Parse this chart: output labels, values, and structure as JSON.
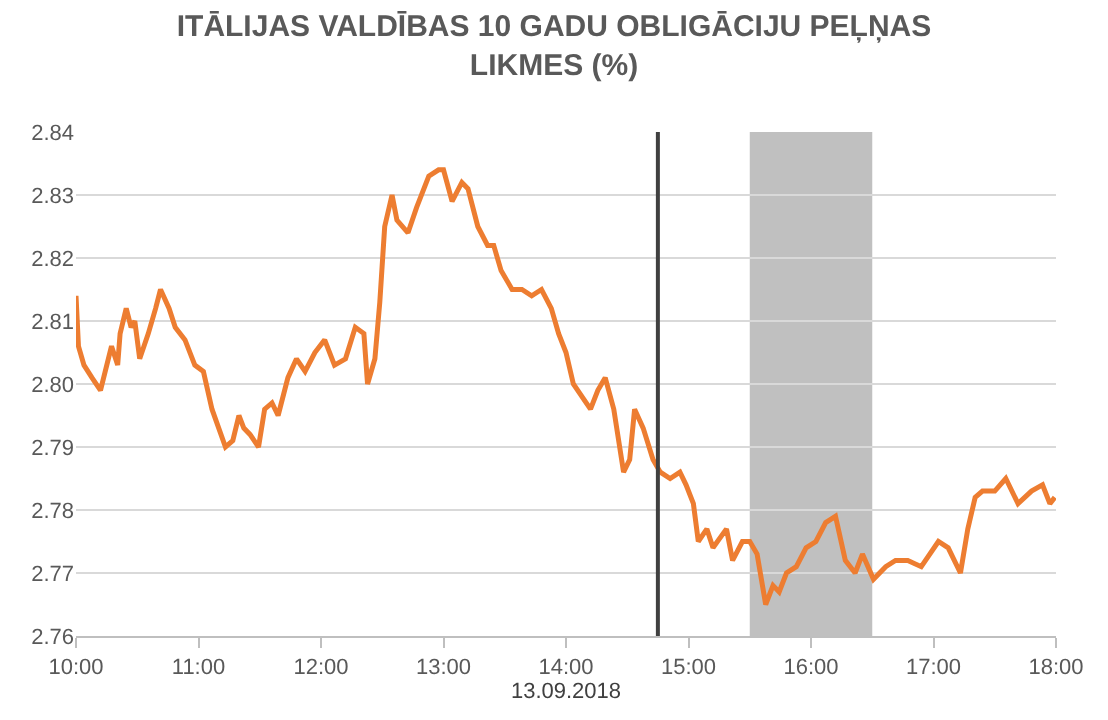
{
  "chart_data": {
    "type": "line",
    "title": "ITĀLIJAS VALDĪBAS 10 GADU OBLIGĀCIJU PEĻŅAS\nLIKMES (%)",
    "xlabel": "13.09.2018",
    "x": [
      10.0,
      10.02,
      10.065,
      10.13,
      10.2,
      10.29,
      10.34,
      10.36,
      10.41,
      10.45,
      10.48,
      10.52,
      10.59,
      10.65,
      10.69,
      10.76,
      10.81,
      10.89,
      10.97,
      11.04,
      11.11,
      11.22,
      11.28,
      11.33,
      11.37,
      11.42,
      11.49,
      11.54,
      11.6,
      11.65,
      11.73,
      11.8,
      11.87,
      11.95,
      12.03,
      12.11,
      12.2,
      12.28,
      12.35,
      12.38,
      12.44,
      12.48,
      12.52,
      12.58,
      12.62,
      12.71,
      12.78,
      12.88,
      12.96,
      13.0,
      13.07,
      13.15,
      13.2,
      13.28,
      13.36,
      13.41,
      13.47,
      13.56,
      13.64,
      13.72,
      13.8,
      13.88,
      13.94,
      14.0,
      14.06,
      14.2,
      14.26,
      14.32,
      14.39,
      14.47,
      14.52,
      14.56,
      14.63,
      14.71,
      14.77,
      14.85,
      14.93,
      14.98,
      15.04,
      15.08,
      15.15,
      15.2,
      15.31,
      15.36,
      15.44,
      15.5,
      15.56,
      15.63,
      15.69,
      15.74,
      15.8,
      15.88,
      15.96,
      16.04,
      16.12,
      16.2,
      16.28,
      16.36,
      16.42,
      16.51,
      16.61,
      16.69,
      16.79,
      16.9,
      17.04,
      17.12,
      17.22,
      17.28,
      17.34,
      17.4,
      17.5,
      17.59,
      17.69,
      17.8,
      17.89,
      17.95,
      17.99
    ],
    "series": [
      {
        "color": "#ed7d31",
        "values": [
          2.814,
          2.806,
          2.803,
          2.801,
          2.799,
          2.806,
          2.803,
          2.808,
          2.812,
          2.809,
          2.81,
          2.804,
          2.808,
          2.812,
          2.815,
          2.812,
          2.809,
          2.807,
          2.803,
          2.802,
          2.796,
          2.79,
          2.791,
          2.795,
          2.793,
          2.792,
          2.79,
          2.796,
          2.797,
          2.795,
          2.801,
          2.804,
          2.802,
          2.805,
          2.807,
          2.803,
          2.804,
          2.809,
          2.808,
          2.8,
          2.804,
          2.813,
          2.825,
          2.83,
          2.826,
          2.824,
          2.828,
          2.833,
          2.834,
          2.834,
          2.829,
          2.832,
          2.831,
          2.825,
          2.822,
          2.822,
          2.818,
          2.815,
          2.815,
          2.814,
          2.815,
          2.812,
          2.808,
          2.805,
          2.8,
          2.796,
          2.799,
          2.801,
          2.796,
          2.786,
          2.788,
          2.796,
          2.793,
          2.788,
          2.786,
          2.785,
          2.786,
          2.784,
          2.781,
          2.775,
          2.777,
          2.774,
          2.777,
          2.772,
          2.775,
          2.775,
          2.773,
          2.765,
          2.768,
          2.767,
          2.77,
          2.771,
          2.774,
          2.775,
          2.778,
          2.779,
          2.772,
          2.77,
          2.773,
          2.769,
          2.771,
          2.772,
          2.772,
          2.771,
          2.775,
          2.774,
          2.77,
          2.777,
          2.782,
          2.783,
          2.783,
          2.785,
          2.781,
          2.783,
          2.784,
          2.781,
          2.782
        ]
      }
    ],
    "xlim": [
      10,
      18
    ],
    "xticks": [
      {
        "value": 10,
        "label": "10:00"
      },
      {
        "value": 11,
        "label": "11:00"
      },
      {
        "value": 12,
        "label": "12:00"
      },
      {
        "value": 13,
        "label": "13:00"
      },
      {
        "value": 14,
        "label": "14:00"
      },
      {
        "value": 15,
        "label": "15:00"
      },
      {
        "value": 16,
        "label": "16:00"
      },
      {
        "value": 17,
        "label": "17:00"
      },
      {
        "value": 18,
        "label": "18:00"
      }
    ],
    "ylim": [
      2.76,
      2.84
    ],
    "yticks": [
      2.76,
      2.77,
      2.78,
      2.79,
      {
        "value": 2.8,
        "label": "2.80"
      },
      2.81,
      2.82,
      2.83,
      2.84
    ],
    "ref_lines": [
      {
        "axis": "x",
        "value": 14.75,
        "color": "#404040"
      }
    ],
    "bands": [
      {
        "axis": "x",
        "from": 15.5,
        "to": 16.5,
        "color": "#c0c0c0"
      }
    ],
    "grid": "y",
    "legend": false,
    "marker": "none",
    "line_style": "solid"
  }
}
